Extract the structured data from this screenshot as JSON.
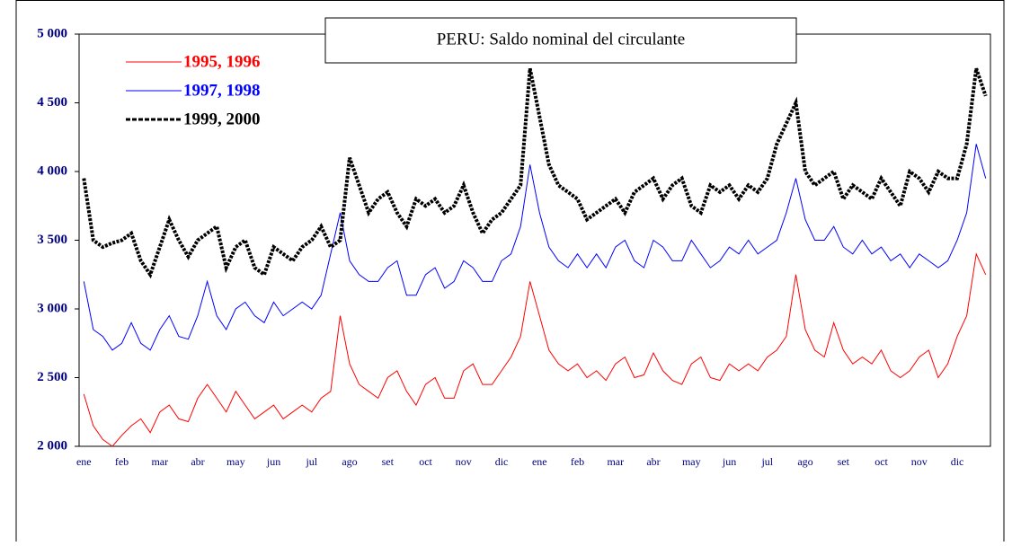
{
  "chart_data": {
    "type": "line",
    "title": "PERU: Saldo nominal del circulante",
    "categories": [
      "ene",
      null,
      null,
      null,
      "feb",
      null,
      null,
      null,
      "mar",
      null,
      null,
      null,
      "abr",
      null,
      null,
      null,
      "may",
      null,
      null,
      null,
      "jun",
      null,
      null,
      null,
      "jul",
      null,
      null,
      null,
      "ago",
      null,
      null,
      null,
      "set",
      null,
      null,
      null,
      "oct",
      null,
      null,
      null,
      "nov",
      null,
      null,
      null,
      "dic",
      null,
      null,
      null,
      "ene",
      null,
      null,
      null,
      "feb",
      null,
      null,
      null,
      "mar",
      null,
      null,
      null,
      "abr",
      null,
      null,
      null,
      "may",
      null,
      null,
      null,
      "jun",
      null,
      null,
      null,
      "jul",
      null,
      null,
      null,
      "ago",
      null,
      null,
      null,
      "set",
      null,
      null,
      null,
      "oct",
      null,
      null,
      null,
      "nov",
      null,
      null,
      null,
      "dic",
      null,
      null,
      null
    ],
    "series": [
      {
        "name": "1995, 1996",
        "color": "#ff0000",
        "line_style": "solid",
        "values": [
          2380,
          2150,
          2050,
          2000,
          2080,
          2150,
          2200,
          2100,
          2250,
          2300,
          2200,
          2180,
          2350,
          2450,
          2350,
          2250,
          2400,
          2300,
          2200,
          2250,
          2300,
          2200,
          2250,
          2300,
          2250,
          2350,
          2400,
          2950,
          2600,
          2450,
          2400,
          2350,
          2500,
          2550,
          2400,
          2300,
          2450,
          2500,
          2350,
          2350,
          2550,
          2600,
          2450,
          2450,
          2550,
          2650,
          2800,
          3200,
          2950,
          2700,
          2600,
          2550,
          2600,
          2500,
          2550,
          2480,
          2600,
          2650,
          2500,
          2520,
          2680,
          2550,
          2480,
          2450,
          2600,
          2650,
          2500,
          2480,
          2600,
          2550,
          2600,
          2550,
          2650,
          2700,
          2800,
          3250,
          2850,
          2700,
          2650,
          2900,
          2700,
          2600,
          2650,
          2600,
          2700,
          2550,
          2500,
          2550,
          2650,
          2700,
          2500,
          2600,
          2800,
          2950,
          3400,
          3250
        ]
      },
      {
        "name": "1997, 1998",
        "color": "#0000ff",
        "line_style": "solid",
        "values": [
          3200,
          2850,
          2800,
          2700,
          2750,
          2900,
          2750,
          2700,
          2850,
          2950,
          2800,
          2780,
          2950,
          3200,
          2950,
          2850,
          3000,
          3050,
          2950,
          2900,
          3050,
          2950,
          3000,
          3050,
          3000,
          3100,
          3400,
          3700,
          3350,
          3250,
          3200,
          3200,
          3300,
          3350,
          3100,
          3100,
          3250,
          3300,
          3150,
          3200,
          3350,
          3300,
          3200,
          3200,
          3350,
          3400,
          3600,
          4050,
          3700,
          3450,
          3350,
          3300,
          3400,
          3300,
          3400,
          3300,
          3450,
          3500,
          3350,
          3300,
          3500,
          3450,
          3350,
          3350,
          3500,
          3400,
          3300,
          3350,
          3450,
          3400,
          3500,
          3400,
          3450,
          3500,
          3700,
          3950,
          3650,
          3500,
          3500,
          3600,
          3450,
          3400,
          3500,
          3400,
          3450,
          3350,
          3400,
          3300,
          3400,
          3350,
          3300,
          3350,
          3500,
          3700,
          4200,
          3950
        ]
      },
      {
        "name": "1999, 2000",
        "color": "#000000",
        "line_style": "dashed",
        "values": [
          3950,
          3500,
          3450,
          3480,
          3500,
          3550,
          3350,
          3250,
          3450,
          3650,
          3500,
          3380,
          3500,
          3550,
          3600,
          3300,
          3450,
          3500,
          3300,
          3250,
          3450,
          3400,
          3350,
          3450,
          3500,
          3600,
          3450,
          3500,
          4100,
          3900,
          3700,
          3800,
          3850,
          3700,
          3600,
          3800,
          3750,
          3800,
          3700,
          3750,
          3900,
          3700,
          3550,
          3650,
          3700,
          3800,
          3900,
          4750,
          4400,
          4050,
          3900,
          3850,
          3800,
          3650,
          3700,
          3750,
          3800,
          3700,
          3850,
          3900,
          3950,
          3800,
          3900,
          3950,
          3750,
          3700,
          3900,
          3850,
          3900,
          3800,
          3900,
          3850,
          3950,
          4200,
          4350,
          4500,
          4000,
          3900,
          3950,
          4000,
          3800,
          3900,
          3850,
          3800,
          3950,
          3850,
          3750,
          4000,
          3950,
          3850,
          4000,
          3950,
          3950,
          4200,
          4750,
          4550
        ]
      }
    ],
    "ylim": [
      2000,
      5000
    ],
    "yticks": [
      {
        "value": 2000,
        "label": "2 000"
      },
      {
        "value": 2500,
        "label": "2 500"
      },
      {
        "value": 3000,
        "label": "3 000"
      },
      {
        "value": 3500,
        "label": "3 500"
      },
      {
        "value": 4000,
        "label": "4 000"
      },
      {
        "value": 4500,
        "label": "4 500"
      },
      {
        "value": 5000,
        "label": "5 000"
      }
    ],
    "legend": "top-left",
    "grid": false
  }
}
